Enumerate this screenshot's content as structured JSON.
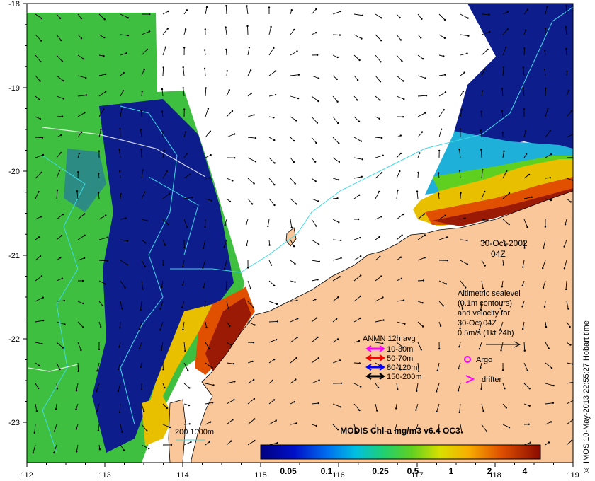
{
  "map": {
    "date": "30-Oct-2002",
    "time": "04Z",
    "x_ticks": [
      "112",
      "113",
      "114",
      "115",
      "116",
      "117",
      "118",
      "119"
    ],
    "y_ticks": [
      "-18",
      "-19",
      "-20",
      "-21",
      "-22",
      "-23"
    ]
  },
  "altimetry_note": {
    "line1": "Altimetric sealevel",
    "line2": "(0.1m contours)",
    "line3": "and velocity for",
    "line4": "30-Oct 04Z",
    "scale_label": "0.5m/s (1kt 24h)"
  },
  "anmn_legend": {
    "title": "ANMN 12h avg",
    "items": [
      {
        "label": "10-30m",
        "color": "#ff00ff"
      },
      {
        "label": "50-70m",
        "color": "#ff0000"
      },
      {
        "label": "80-120m",
        "color": "#0000ff"
      },
      {
        "label": "150-200m",
        "color": "#000000"
      }
    ]
  },
  "markers": {
    "argo_label": "Argo",
    "drifter_label": "drifter"
  },
  "depth_legend": {
    "label": "200  1000m"
  },
  "colorbar": {
    "title": "MODIS Chl-a mg/m3 v6.4 OC3",
    "ticks": [
      "0.05",
      "0.1",
      "0.25",
      "0.5",
      "1",
      "2",
      "4"
    ]
  },
  "credit": "© IMOS 10-May-2013 22:55:27 Hobart time",
  "colors": {
    "land": "#f9c79a",
    "ocean_green": "#3fbf3f",
    "ocean_dark": "#0d1e8c",
    "shelf_red": "#9b1a05"
  }
}
